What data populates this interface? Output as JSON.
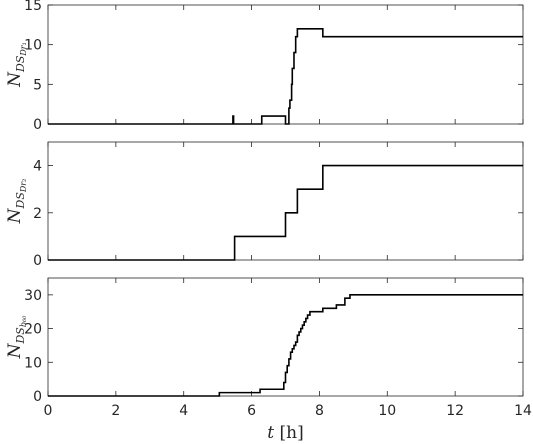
{
  "chart_data": [
    {
      "type": "line",
      "step": true,
      "ylabel": {
        "main": "N",
        "sub": "DS",
        "subsub": "Dr₁"
      },
      "xlim": [
        0,
        14
      ],
      "ylim": [
        0,
        15
      ],
      "yticks": [
        0,
        5,
        10,
        15
      ],
      "xticks": [
        0,
        2,
        4,
        6,
        8,
        10,
        12,
        14
      ],
      "show_xtick_labels": false,
      "grid": false,
      "series": [
        {
          "x": [
            0,
            5.45,
            5.45,
            5.47,
            5.47,
            6.3,
            6.3,
            7.0,
            7.0,
            7.1,
            7.1,
            7.13,
            7.13,
            7.18,
            7.18,
            7.2,
            7.2,
            7.25,
            7.25,
            7.3,
            7.3,
            7.35,
            7.35,
            8.1,
            8.1,
            14
          ],
          "y": [
            0,
            0,
            1,
            1,
            0,
            0,
            1,
            1,
            0,
            0,
            2,
            2,
            3,
            3,
            5,
            5,
            7,
            7,
            9,
            9,
            11,
            11,
            12,
            12,
            11,
            11
          ]
        }
      ]
    },
    {
      "type": "line",
      "step": true,
      "ylabel": {
        "main": "N",
        "sub": "DS",
        "subsub": "Dr₂"
      },
      "xlim": [
        0,
        14
      ],
      "ylim": [
        0,
        5
      ],
      "yticks": [
        0,
        2,
        4
      ],
      "xticks": [
        0,
        2,
        4,
        6,
        8,
        10,
        12,
        14
      ],
      "show_xtick_labels": false,
      "grid": false,
      "series": [
        {
          "x": [
            0,
            5.5,
            5.5,
            7.0,
            7.0,
            7.35,
            7.35,
            8.1,
            8.1,
            14
          ],
          "y": [
            0,
            0,
            1,
            1,
            2,
            2,
            3,
            3,
            4,
            4
          ]
        }
      ]
    },
    {
      "type": "line",
      "step": true,
      "ylabel": {
        "main": "N",
        "sub": "DS",
        "subsub": "b₆₀"
      },
      "xlabel": {
        "main": "t",
        "unit": "[h]"
      },
      "xlim": [
        0,
        14
      ],
      "ylim": [
        0,
        35
      ],
      "yticks": [
        0,
        10,
        20,
        30
      ],
      "xticks": [
        0,
        2,
        4,
        6,
        8,
        10,
        12,
        14
      ],
      "show_xtick_labels": true,
      "grid": false,
      "series": [
        {
          "x": [
            0,
            5.05,
            5.05,
            6.25,
            6.25,
            6.95,
            6.95,
            7.0,
            7.0,
            7.05,
            7.05,
            7.1,
            7.1,
            7.15,
            7.15,
            7.2,
            7.2,
            7.25,
            7.25,
            7.3,
            7.3,
            7.35,
            7.35,
            7.4,
            7.4,
            7.45,
            7.45,
            7.5,
            7.5,
            7.55,
            7.55,
            7.6,
            7.6,
            7.65,
            7.65,
            7.72,
            7.72,
            7.8,
            7.8,
            7.9,
            7.9,
            8.1,
            8.1,
            8.5,
            8.5,
            8.75,
            8.75,
            8.9,
            8.9,
            14
          ],
          "y": [
            0,
            0,
            1,
            1,
            2,
            2,
            4,
            4,
            7,
            7,
            9,
            9,
            11,
            11,
            13,
            13,
            14,
            14,
            15,
            15,
            16,
            16,
            18,
            18,
            19,
            19,
            20,
            20,
            21,
            21,
            22,
            22,
            23,
            23,
            24,
            24,
            25,
            25,
            25,
            25,
            25,
            25,
            26,
            26,
            27,
            27,
            29,
            29,
            30,
            30
          ]
        }
      ]
    }
  ]
}
